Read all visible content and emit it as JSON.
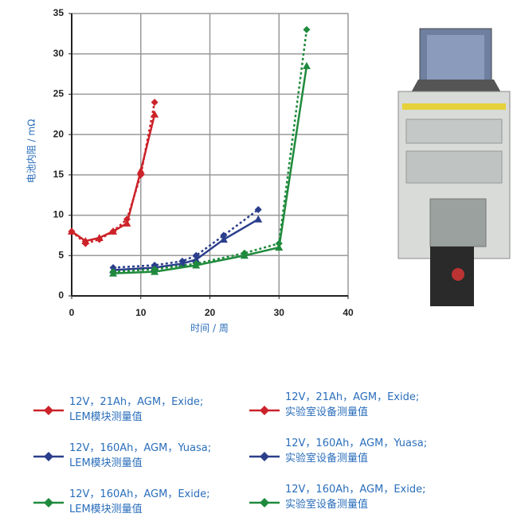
{
  "chart_data": {
    "type": "line",
    "x_label": "时间 / 周",
    "y_label": "电池内阻 / mΩ",
    "xlim": [
      0,
      40
    ],
    "xticks": [
      0,
      10,
      20,
      30,
      40
    ],
    "ylim": [
      0,
      35
    ],
    "yticks": [
      0,
      5,
      10,
      15,
      20,
      25,
      30,
      35
    ],
    "grid": true,
    "series": [
      {
        "name": "12V，21Ah，AGM，Exide;\nLEM模块测量值",
        "color": "#cc2229",
        "dash": false,
        "x": [
          0,
          2,
          4,
          6,
          8,
          10,
          12
        ],
        "values": [
          8,
          6.8,
          7.2,
          8,
          9,
          15.5,
          22.5
        ]
      },
      {
        "name": "12V，21Ah，AGM，Exide;\n实验室设备测量值",
        "color": "#cc2229",
        "dash": true,
        "x": [
          0,
          2,
          4,
          6,
          8,
          10,
          12
        ],
        "values": [
          8,
          6.5,
          7,
          8,
          9.5,
          15,
          24
        ]
      },
      {
        "name": "12V，160Ah，AGM，Yuasa;\nLEM模块测量值",
        "color": "#2b3e8c",
        "dash": false,
        "x": [
          6,
          12,
          16,
          18,
          22,
          27
        ],
        "values": [
          3.2,
          3.5,
          4,
          4.5,
          7,
          9.5
        ]
      },
      {
        "name": "12V，160Ah，AGM，Yuasa;\n实验室设备测量值",
        "color": "#2b3e8c",
        "dash": true,
        "x": [
          6,
          12,
          16,
          18,
          22,
          27
        ],
        "values": [
          3.5,
          3.8,
          4.3,
          5,
          7.5,
          10.7
        ]
      },
      {
        "name": "12V，160Ah，AGM，Exide;\nLEM模块测量值",
        "color": "#1f8a3c",
        "dash": false,
        "x": [
          6,
          12,
          18,
          25,
          30,
          34
        ],
        "values": [
          2.8,
          3,
          3.8,
          5,
          6,
          28.5
        ]
      },
      {
        "name": "12V，160Ah，AGM，Exide;\n实验室设备测量值",
        "color": "#1f8a3c",
        "dash": true,
        "x": [
          6,
          12,
          18,
          25,
          30,
          34
        ],
        "values": [
          3,
          3.3,
          4,
          5.3,
          6.5,
          33
        ]
      }
    ]
  }
}
